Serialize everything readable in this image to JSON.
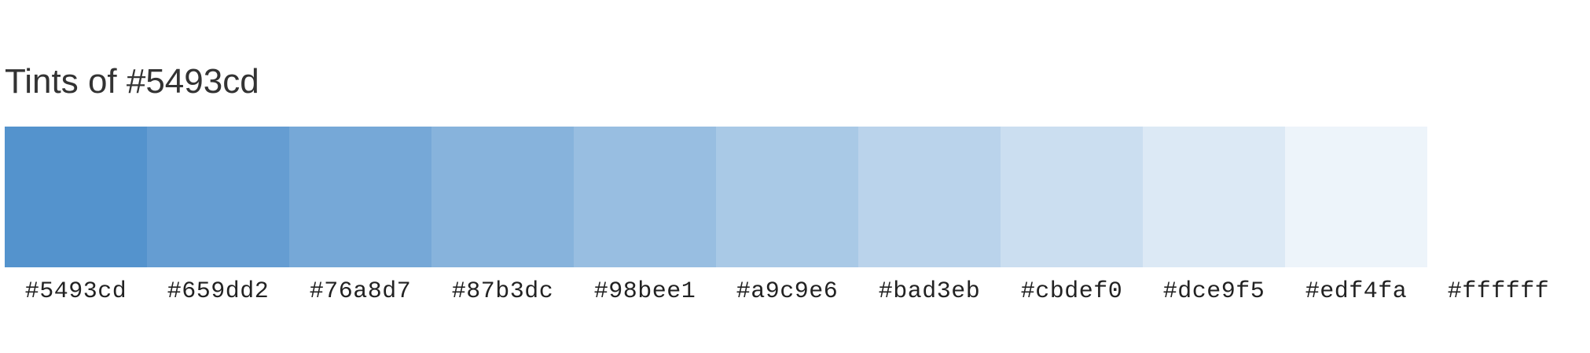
{
  "page": {
    "title": "Tints of #5493cd"
  },
  "swatches": [
    {
      "label": "#5493cd",
      "color": "#5493cd"
    },
    {
      "label": "#659dd2",
      "color": "#659dd2"
    },
    {
      "label": "#76a8d7",
      "color": "#76a8d7"
    },
    {
      "label": "#87b3dc",
      "color": "#87b3dc"
    },
    {
      "label": "#98bee1",
      "color": "#98bee1"
    },
    {
      "label": "#a9c9e6",
      "color": "#a9c9e6"
    },
    {
      "label": "#bad3eb",
      "color": "#bad3eb"
    },
    {
      "label": "#cbdef0",
      "color": "#cbdef0"
    },
    {
      "label": "#dce9f5",
      "color": "#dce9f5"
    },
    {
      "label": "#edf4fa",
      "color": "#edf4fa"
    },
    {
      "label": "#ffffff",
      "color": "#ffffff"
    }
  ]
}
